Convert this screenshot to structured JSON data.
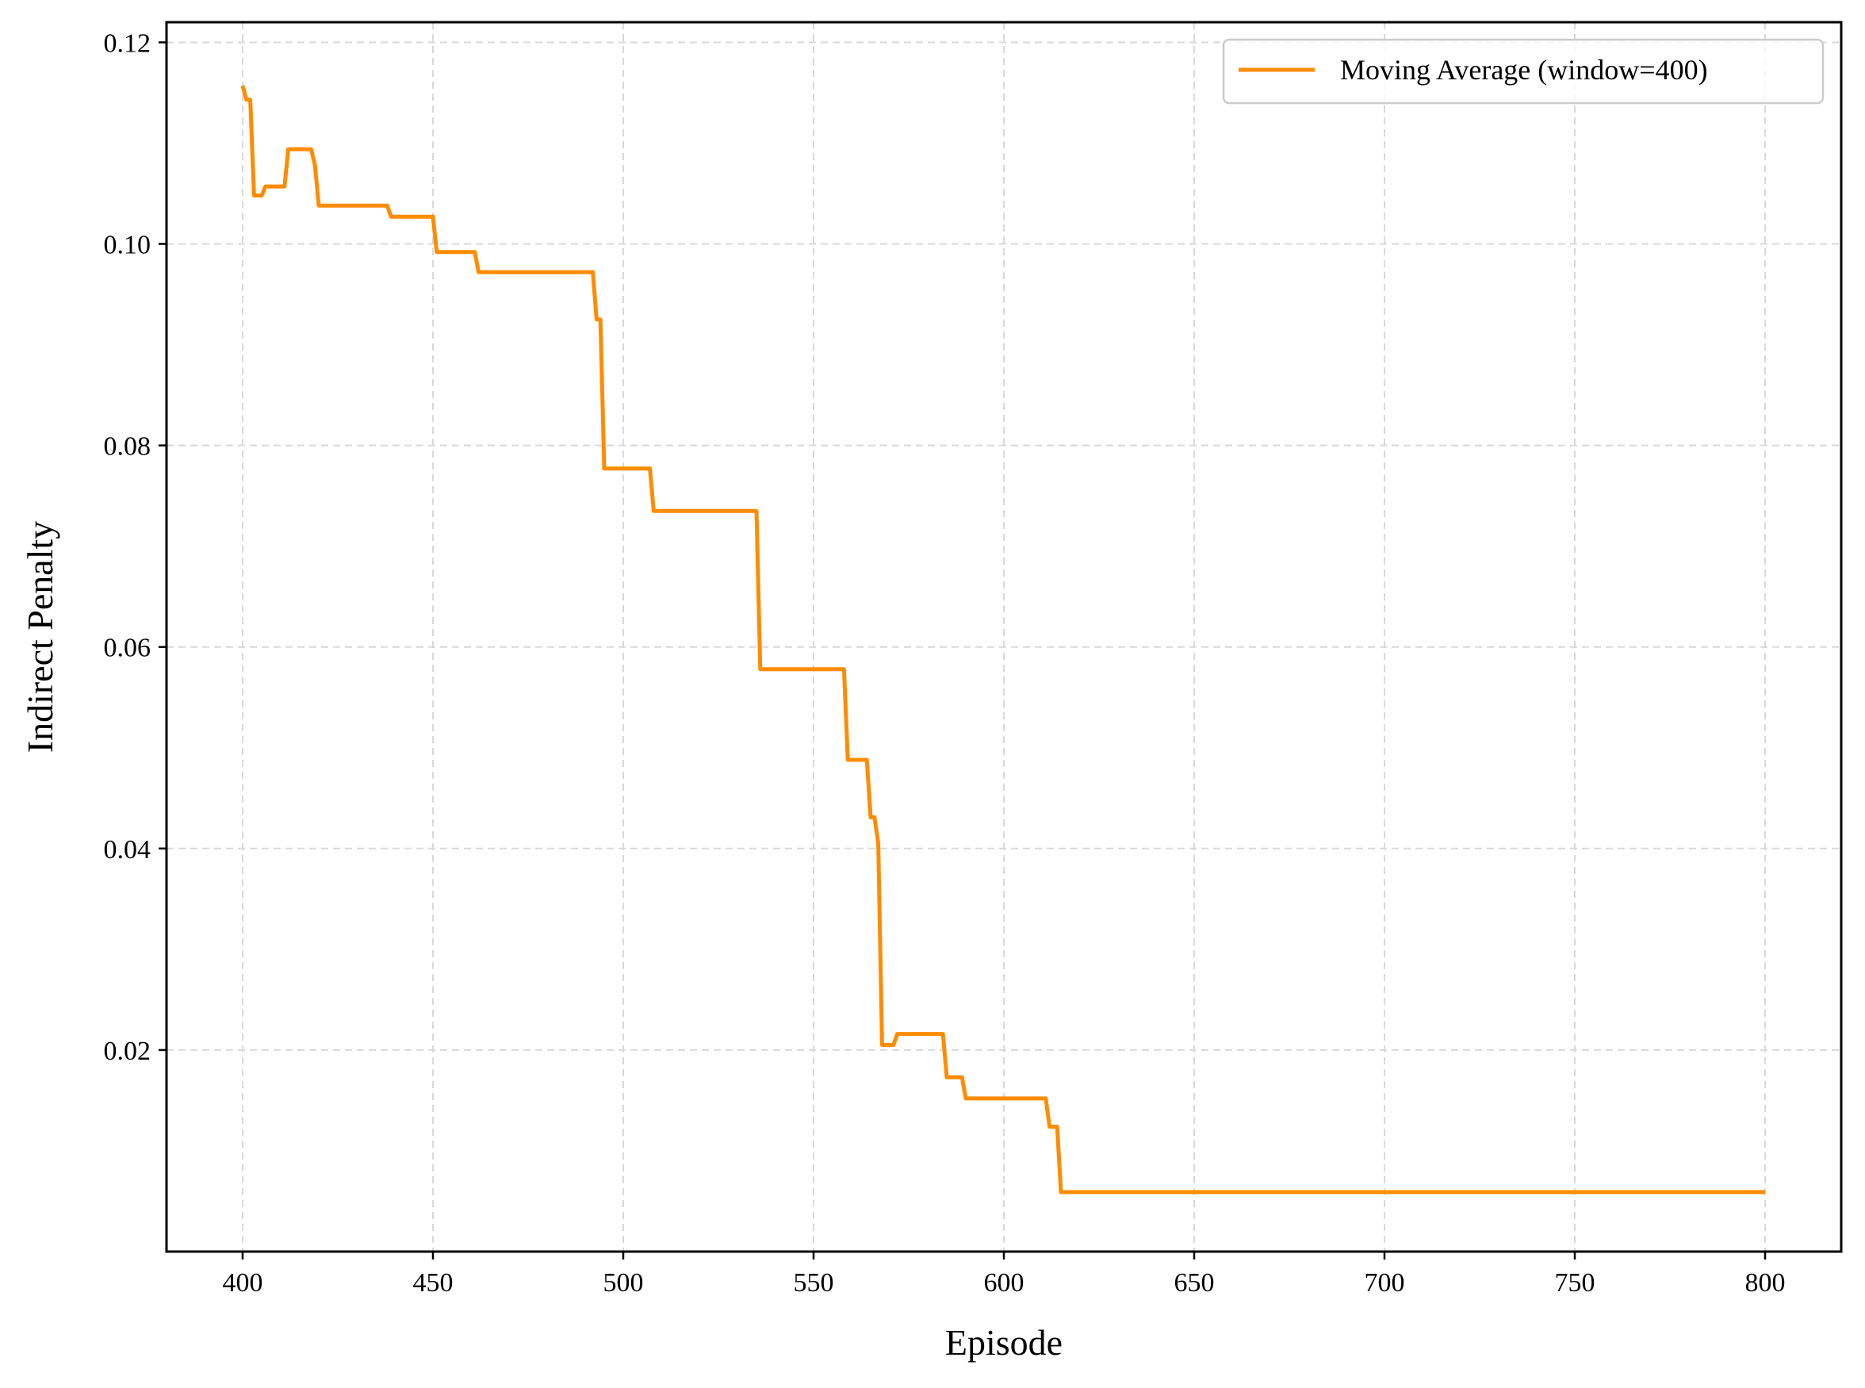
{
  "chart_data": {
    "type": "line",
    "title": "",
    "xlabel": "Episode",
    "ylabel": "Indirect Penalty",
    "xlim": [
      380,
      820
    ],
    "ylim": [
      0.0,
      0.122
    ],
    "x_ticks": [
      400,
      450,
      500,
      550,
      600,
      650,
      700,
      750,
      800
    ],
    "x_tick_labels": [
      "400",
      "450",
      "500",
      "550",
      "600",
      "650",
      "700",
      "750",
      "800"
    ],
    "y_ticks": [
      0.02,
      0.04,
      0.06,
      0.08,
      0.1,
      0.12
    ],
    "y_tick_labels": [
      "0.02",
      "0.04",
      "0.06",
      "0.08",
      "0.10",
      "0.12"
    ],
    "grid": true,
    "legend_position": "top-right",
    "series": [
      {
        "name": "Moving Average (window=400)",
        "color": "#ff8c00",
        "x": [
          400,
          401,
          402,
          403,
          405,
          406,
          411,
          412,
          413,
          418,
          419,
          420,
          438,
          439,
          450,
          451,
          461,
          462,
          492,
          493,
          494,
          495,
          507,
          508,
          535,
          536,
          558,
          559,
          564,
          565,
          566,
          567,
          568,
          571,
          572,
          584,
          585,
          589,
          590,
          611,
          612,
          614,
          615,
          800
        ],
        "y": [
          0.1157,
          0.1143,
          0.1143,
          0.1048,
          0.1048,
          0.1057,
          0.1057,
          0.1094,
          0.1094,
          0.1094,
          0.1078,
          0.1038,
          0.1038,
          0.1027,
          0.1027,
          0.0992,
          0.0992,
          0.0972,
          0.0972,
          0.0925,
          0.0925,
          0.0777,
          0.0777,
          0.0735,
          0.0735,
          0.0578,
          0.0578,
          0.0488,
          0.0488,
          0.0431,
          0.0431,
          0.0405,
          0.0205,
          0.0205,
          0.0216,
          0.0216,
          0.0173,
          0.0173,
          0.0152,
          0.0152,
          0.0124,
          0.0124,
          0.0059,
          0.0059
        ]
      }
    ]
  }
}
